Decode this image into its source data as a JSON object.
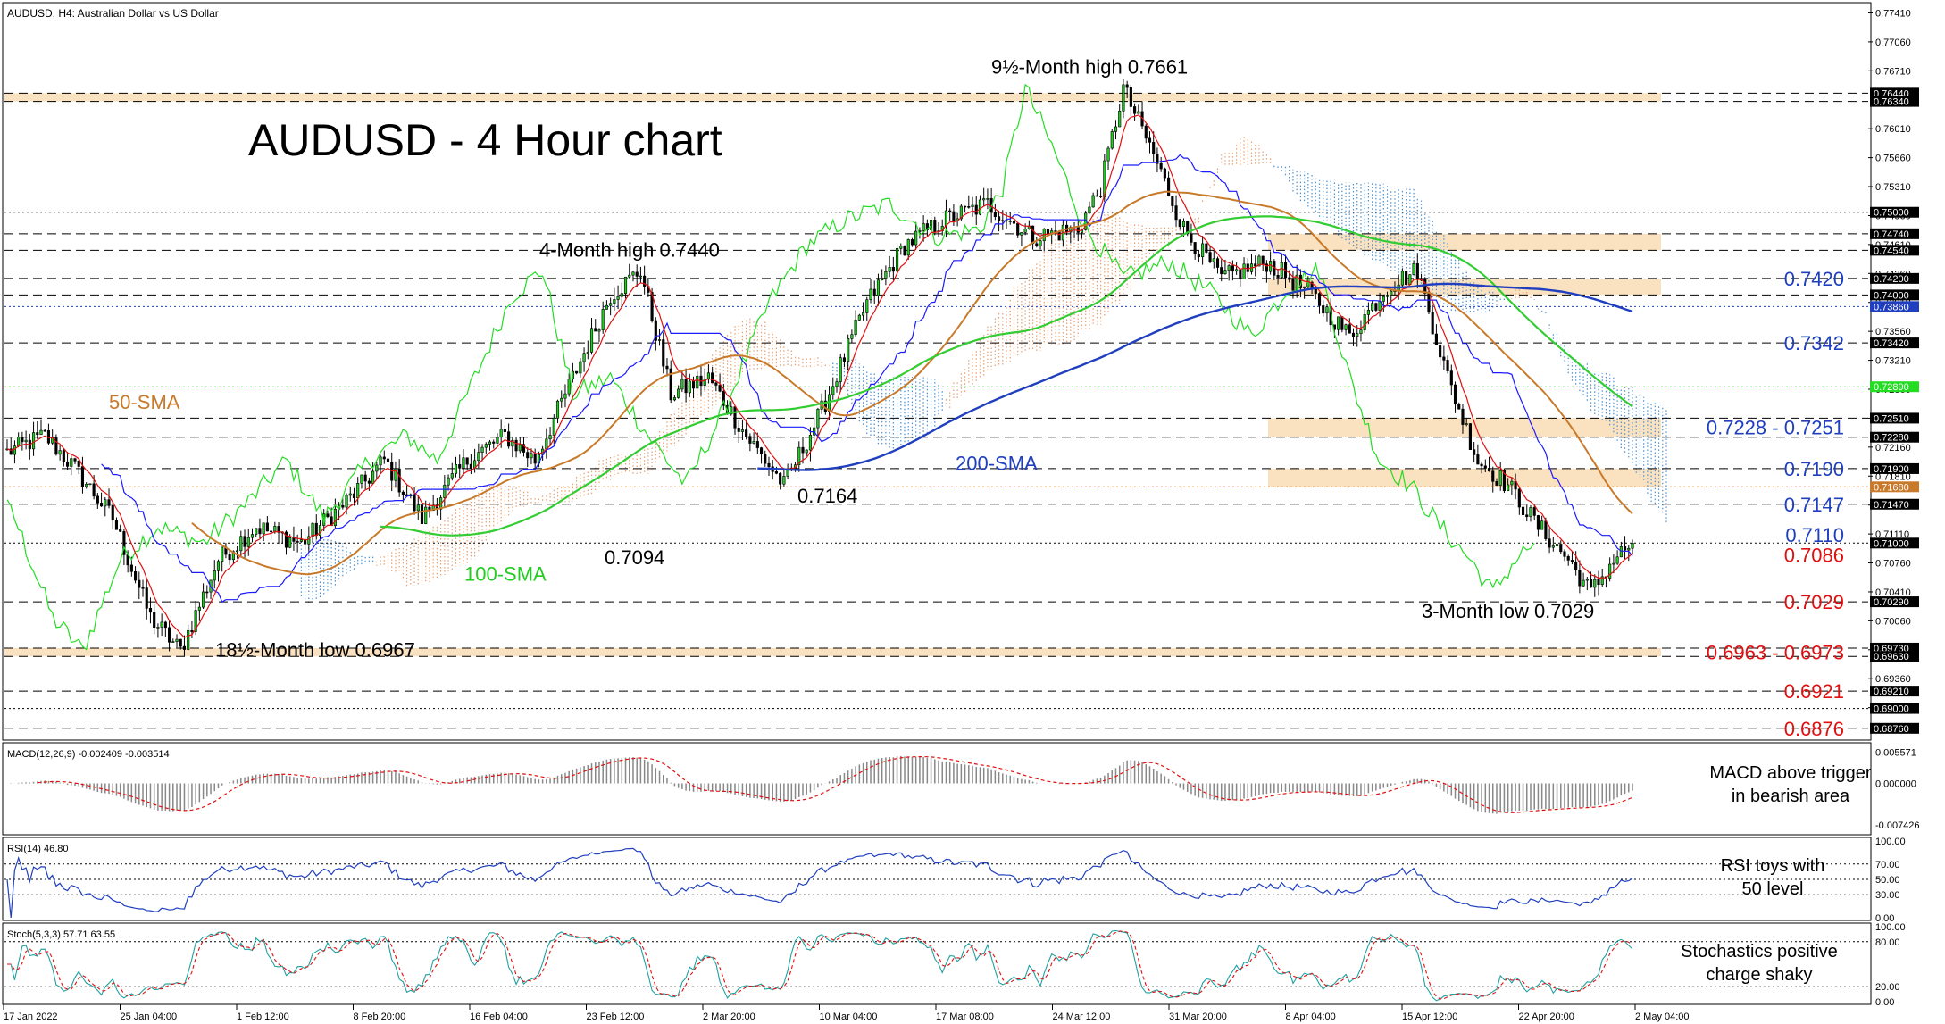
{
  "header": {
    "symbol_line": "AUDUSD, H4:  Australian Dollar vs US Dollar",
    "big_title": "AUDUSD - 4 Hour chart"
  },
  "colors": {
    "ema_red": "#e01010",
    "kijun_blue": "#1a1aff",
    "chikou_green": "#22dd22",
    "sma50": "#c87a2a",
    "sma100": "#33cc33",
    "sma200": "#1f3fbf",
    "cloud_orange": "#e8a070",
    "cloud_blue": "#4a90d0",
    "zone_fill": "#f9d9b0",
    "label_blue": "#1f3fbf",
    "label_red": "#e01010",
    "label_green": "#22cc22",
    "label_orange": "#c87a2a"
  },
  "chart_data": [
    {
      "type": "line",
      "panel": "price",
      "ylim": [
        0.6865,
        0.7748
      ],
      "grid": false,
      "x_dates": [
        "17 Jan 2022",
        "25 Jan 04:00",
        "1 Feb 12:00",
        "8 Feb 20:00",
        "16 Feb 04:00",
        "23 Feb 12:00",
        "2 Mar 20:00",
        "10 Mar 04:00",
        "17 Mar 08:00",
        "24 Mar 12:00",
        "31 Mar 20:00",
        "8 Apr 04:00",
        "15 Apr 12:00",
        "22 Apr 20:00",
        "2 May 04:00"
      ],
      "y_ticks": [
        "0.77410",
        "0.77060",
        "0.76710",
        "0.76010",
        "0.75660",
        "0.75310",
        "0.74960",
        "0.74610",
        "0.74260",
        "0.73910",
        "0.73560",
        "0.73210",
        "0.72860",
        "0.72510",
        "0.72160",
        "0.71810",
        "0.71460",
        "0.71110",
        "0.70760",
        "0.70410",
        "0.70060",
        "0.69710",
        "0.69360",
        "0.69010"
      ],
      "y_tick_values": [
        0.7741,
        0.7706,
        0.7671,
        0.7601,
        0.7566,
        0.7531,
        0.7496,
        0.7461,
        0.7426,
        0.7391,
        0.7356,
        0.7321,
        0.7286,
        0.7251,
        0.7216,
        0.7181,
        0.7146,
        0.7111,
        0.7076,
        0.7041,
        0.7006,
        0.6971,
        0.6936,
        0.6901
      ],
      "price_boxes": [
        {
          "label": "0.76440",
          "value": 0.7644,
          "bg": "#000000"
        },
        {
          "label": "0.76340",
          "value": 0.7634,
          "bg": "#000000"
        },
        {
          "label": "0.75000",
          "value": 0.75,
          "bg": "#000000"
        },
        {
          "label": "0.74740",
          "value": 0.7474,
          "bg": "#000000"
        },
        {
          "label": "0.74540",
          "value": 0.7454,
          "bg": "#000000"
        },
        {
          "label": "0.74200",
          "value": 0.742,
          "bg": "#000000"
        },
        {
          "label": "0.74000",
          "value": 0.74,
          "bg": "#000000"
        },
        {
          "label": "0.73860",
          "value": 0.7386,
          "bg": "#1f3fbf"
        },
        {
          "label": "0.73420",
          "value": 0.7342,
          "bg": "#000000"
        },
        {
          "label": "0.72890",
          "value": 0.7289,
          "bg": "#22dd22"
        },
        {
          "label": "0.72510",
          "value": 0.7251,
          "bg": "#000000"
        },
        {
          "label": "0.72280",
          "value": 0.7228,
          "bg": "#000000"
        },
        {
          "label": "0.71900",
          "value": 0.719,
          "bg": "#000000"
        },
        {
          "label": "0.71680",
          "value": 0.7168,
          "bg": "#c87a2a"
        },
        {
          "label": "0.71470",
          "value": 0.7147,
          "bg": "#000000"
        },
        {
          "label": "0.71000",
          "value": 0.71,
          "bg": "#000000"
        },
        {
          "label": "0.70290",
          "value": 0.7029,
          "bg": "#000000"
        },
        {
          "label": "0.69730",
          "value": 0.6973,
          "bg": "#000000"
        },
        {
          "label": "0.69630",
          "value": 0.6963,
          "bg": "#000000"
        },
        {
          "label": "0.69210",
          "value": 0.6921,
          "bg": "#000000"
        },
        {
          "label": "0.69000",
          "value": 0.69,
          "bg": "#000000"
        },
        {
          "label": "0.68760",
          "value": 0.6876,
          "bg": "#000000"
        }
      ],
      "levels": [
        {
          "value": 0.7644,
          "style": "dash"
        },
        {
          "value": 0.7634,
          "style": "dash"
        },
        {
          "value": 0.75,
          "style": "dot"
        },
        {
          "value": 0.7474,
          "style": "dash"
        },
        {
          "value": 0.7454,
          "style": "dash"
        },
        {
          "value": 0.742,
          "style": "dash"
        },
        {
          "value": 0.74,
          "style": "dash"
        },
        {
          "value": 0.7386,
          "style": "dot",
          "color": "#1f3fbf"
        },
        {
          "value": 0.7342,
          "style": "dash"
        },
        {
          "value": 0.7289,
          "style": "dot",
          "color": "#22dd22"
        },
        {
          "value": 0.7251,
          "style": "dash"
        },
        {
          "value": 0.7228,
          "style": "dash"
        },
        {
          "value": 0.719,
          "style": "dash"
        },
        {
          "value": 0.7168,
          "style": "dot",
          "color": "#c87a2a"
        },
        {
          "value": 0.7147,
          "style": "dash"
        },
        {
          "value": 0.71,
          "style": "dot"
        },
        {
          "value": 0.7029,
          "style": "dash"
        },
        {
          "value": 0.6973,
          "style": "dash"
        },
        {
          "value": 0.6963,
          "style": "dash"
        },
        {
          "value": 0.6921,
          "style": "dash"
        },
        {
          "value": 0.69,
          "style": "dot"
        },
        {
          "value": 0.6876,
          "style": "dash"
        }
      ],
      "zones": [
        [
          0.7634,
          0.7644
        ],
        [
          0.7454,
          0.7474
        ],
        [
          0.74,
          0.742
        ],
        [
          0.7228,
          0.7251
        ],
        [
          0.7168,
          0.719
        ],
        [
          0.6963,
          0.6973
        ]
      ],
      "annotations": [
        {
          "text": "9½-Month high 0.7661",
          "value": 0.7661,
          "color": "#000000"
        },
        {
          "text": "4-Month high 0.7440",
          "value": 0.744,
          "color": "#000000"
        },
        {
          "text": "50-SMA",
          "value": 0.7262,
          "color": "#c87a2a"
        },
        {
          "text": "200-SMA",
          "value": 0.7201,
          "color": "#1f3fbf"
        },
        {
          "text": "0.7164",
          "value": 0.7164,
          "color": "#000000"
        },
        {
          "text": "0.7094",
          "value": 0.7094,
          "color": "#000000"
        },
        {
          "text": "100-SMA",
          "value": 0.7074,
          "color": "#22cc22"
        },
        {
          "text": "18½-Month low 0.6967",
          "value": 0.6967,
          "color": "#000000"
        },
        {
          "text": "3-Month low 0.7029",
          "value": 0.7029,
          "color": "#000000"
        }
      ],
      "right_labels": [
        {
          "text": "0.7420",
          "value": 0.742,
          "color": "#1f3fbf"
        },
        {
          "text": "0.7342",
          "value": 0.7342,
          "color": "#1f3fbf"
        },
        {
          "text": "0.7228 - 0.7251",
          "value": 0.724,
          "color": "#1f3fbf"
        },
        {
          "text": "0.7190",
          "value": 0.719,
          "color": "#1f3fbf"
        },
        {
          "text": "0.7147",
          "value": 0.7147,
          "color": "#1f3fbf"
        },
        {
          "text": "0.7110",
          "value": 0.711,
          "color": "#1f3fbf"
        },
        {
          "text": "0.7086",
          "value": 0.7086,
          "color": "#e01010"
        },
        {
          "text": "0.7029",
          "value": 0.7029,
          "color": "#e01010"
        },
        {
          "text": "0.6963 - 0.6973",
          "value": 0.6968,
          "color": "#e01010"
        },
        {
          "text": "0.6921",
          "value": 0.6921,
          "color": "#e01010"
        },
        {
          "text": "0.6876",
          "value": 0.6876,
          "color": "#e01010"
        }
      ],
      "close_anchors": [
        [
          0,
          0.721
        ],
        [
          10,
          0.723
        ],
        [
          18,
          0.719
        ],
        [
          28,
          0.713
        ],
        [
          38,
          0.701
        ],
        [
          46,
          0.697
        ],
        [
          56,
          0.708
        ],
        [
          66,
          0.712
        ],
        [
          78,
          0.71
        ],
        [
          90,
          0.715
        ],
        [
          100,
          0.72
        ],
        [
          110,
          0.713
        ],
        [
          122,
          0.72
        ],
        [
          132,
          0.723
        ],
        [
          140,
          0.72
        ],
        [
          150,
          0.73
        ],
        [
          160,
          0.74
        ],
        [
          168,
          0.743
        ],
        [
          176,
          0.728
        ],
        [
          186,
          0.73
        ],
        [
          196,
          0.723
        ],
        [
          206,
          0.717
        ],
        [
          216,
          0.726
        ],
        [
          228,
          0.739
        ],
        [
          238,
          0.746
        ],
        [
          248,
          0.749
        ],
        [
          260,
          0.751
        ],
        [
          272,
          0.747
        ],
        [
          284,
          0.748
        ],
        [
          290,
          0.753
        ],
        [
          296,
          0.765
        ],
        [
          304,
          0.757
        ],
        [
          312,
          0.748
        ],
        [
          322,
          0.742
        ],
        [
          334,
          0.744
        ],
        [
          346,
          0.74
        ],
        [
          356,
          0.735
        ],
        [
          366,
          0.741
        ],
        [
          374,
          0.743
        ],
        [
          382,
          0.73
        ],
        [
          390,
          0.72
        ],
        [
          398,
          0.717
        ],
        [
          406,
          0.712
        ],
        [
          414,
          0.708
        ],
        [
          420,
          0.704
        ],
        [
          426,
          0.708
        ],
        [
          431,
          0.71
        ]
      ],
      "series": [
        {
          "kind": "sma",
          "period": 50,
          "color": "#c87a2a"
        },
        {
          "kind": "sma",
          "period": 100,
          "color": "#33cc33"
        },
        {
          "kind": "sma",
          "period": 200,
          "color": "#1f3fbf"
        },
        {
          "kind": "ema",
          "period": 7,
          "color": "#e01010"
        },
        {
          "kind": "kijun",
          "period": 26,
          "color": "#1a1aff"
        },
        {
          "kind": "chikou",
          "shift": 26,
          "color": "#22dd22"
        }
      ]
    },
    {
      "type": "bar",
      "panel": "macd",
      "label": "MACD(12,26,9) -0.002409 -0.003514",
      "ticks": [
        "0.005571",
        "0.000000",
        "-0.007426"
      ],
      "tick_values": [
        0.005571,
        0,
        -0.007426
      ],
      "ylim": [
        -0.0085,
        0.0066
      ],
      "note": [
        "MACD above trigger",
        "in bearish area"
      ]
    },
    {
      "type": "line",
      "panel": "rsi",
      "label": "RSI(14) 46.80",
      "ticks": [
        "70.00",
        "50.00",
        "30.00",
        "0.00",
        "100.00"
      ],
      "tick_values": [
        70,
        50,
        30,
        0,
        100
      ],
      "ylim": [
        0,
        100
      ],
      "note": [
        "RSI toys with",
        "50 level"
      ]
    },
    {
      "type": "line",
      "panel": "stoch",
      "label": "Stoch(5,3,3) 57.71 63.55",
      "ticks": [
        "80.00",
        "20.00",
        "0.00",
        "100.00"
      ],
      "tick_values": [
        80,
        20,
        0,
        100
      ],
      "ylim": [
        0,
        100
      ],
      "note": [
        "Stochastics positive",
        "charge shaky"
      ]
    }
  ]
}
